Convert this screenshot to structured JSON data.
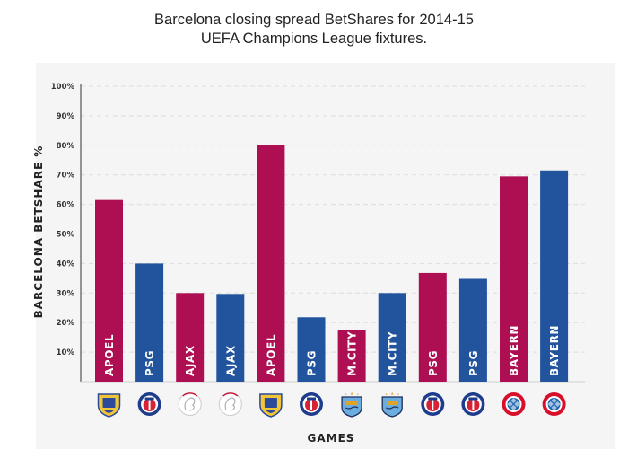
{
  "chart_data": {
    "type": "bar",
    "title_line1": "Barcelona closing spread BetShares for 2014-15",
    "title_line2": "UEFA Champions League fixtures.",
    "xlabel": "GAMES",
    "ylabel": "BARCELONA BETSHARE %",
    "ylim": [
      0,
      100
    ],
    "yticks": [
      "10%",
      "20%",
      "30%",
      "40%",
      "50%",
      "60%",
      "70%",
      "80%",
      "90%",
      "100%"
    ],
    "grid": true,
    "colors": {
      "home": "#ad0f52",
      "away": "#22539d"
    },
    "categories": [
      "APOEL",
      "PSG",
      "AJAX",
      "AJAX",
      "APOEL",
      "PSG",
      "M.CITY",
      "M.CITY",
      "PSG",
      "PSG",
      "BAYERN",
      "BAYERN"
    ],
    "values": [
      61.5,
      40,
      30,
      29.7,
      80,
      21.8,
      17.5,
      30,
      36.8,
      34.8,
      69.5,
      71.5
    ],
    "bar_color_keys": [
      "home",
      "away",
      "home",
      "away",
      "home",
      "away",
      "home",
      "away",
      "home",
      "away",
      "home",
      "away"
    ],
    "crest_icons": [
      "apoel-crest-icon",
      "psg-crest-icon",
      "ajax-crest-icon",
      "ajax-crest-icon",
      "apoel-crest-icon",
      "psg-crest-icon",
      "man-city-crest-icon",
      "man-city-crest-icon",
      "psg-crest-icon",
      "psg-crest-icon",
      "bayern-crest-icon",
      "bayern-crest-icon"
    ]
  }
}
